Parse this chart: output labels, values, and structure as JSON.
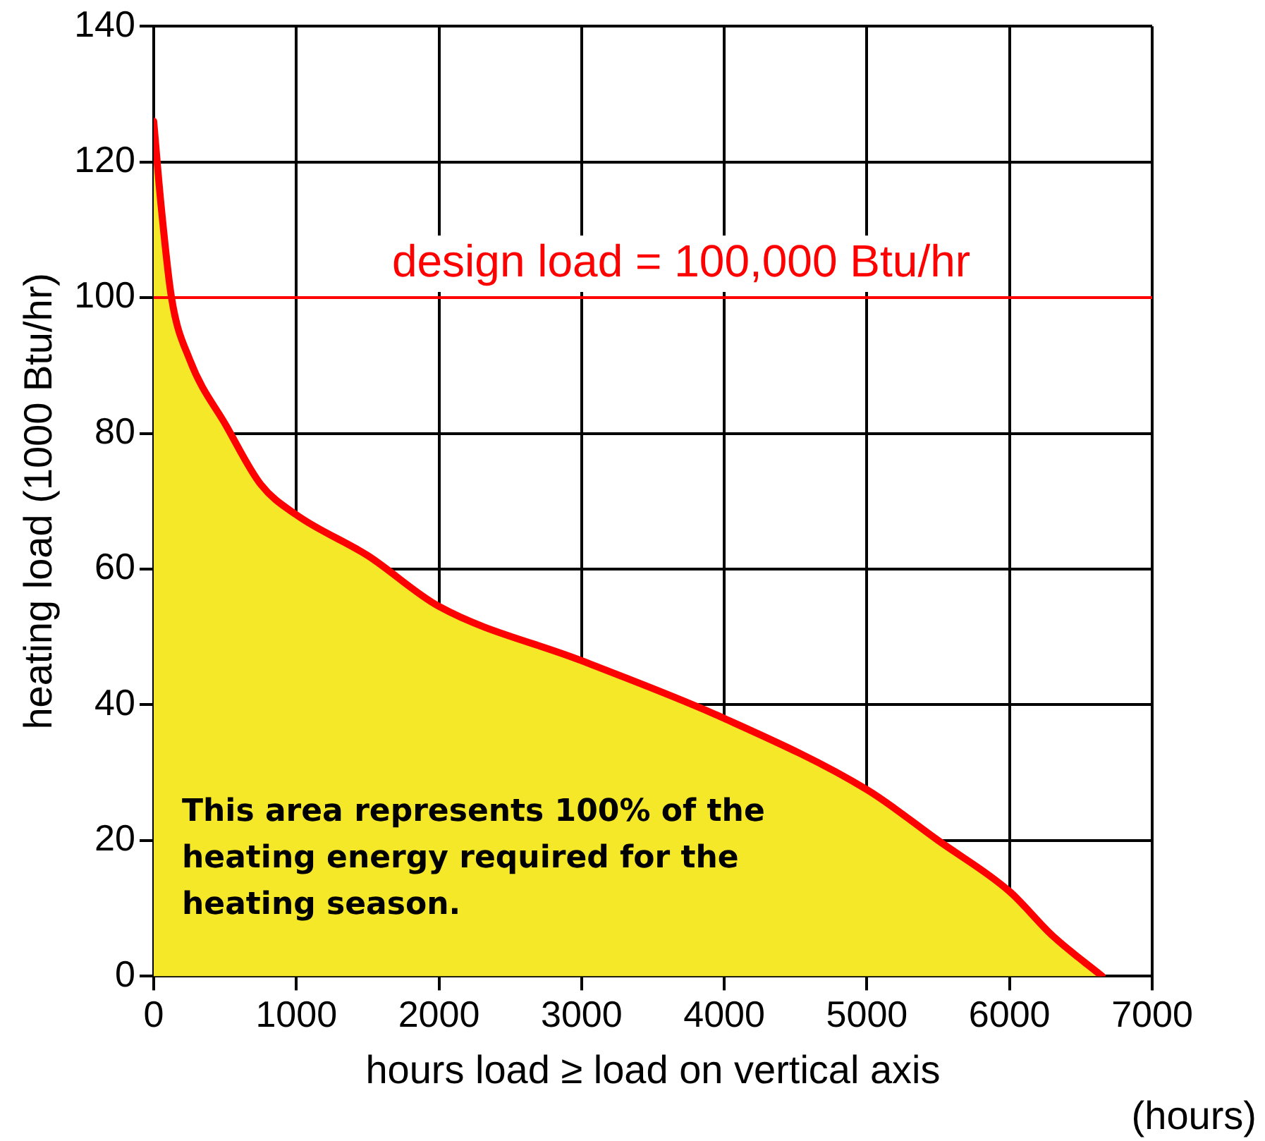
{
  "chart_data": {
    "type": "area",
    "xlabel": "hours load ≥ load on vertical axis",
    "ylabel": "heating load (1000 Btu/hr)",
    "series": [
      {
        "color": "#ff0000",
        "x": [
          0,
          50,
          125,
          250,
          512,
          750,
          1000,
          1500,
          2000,
          3000,
          4000,
          5000,
          5500,
          6000,
          6300,
          6650
        ],
        "values": [
          126,
          114,
          100,
          91,
          81,
          72.5,
          68,
          62,
          54.5,
          46.5,
          38,
          27.5,
          20,
          12.5,
          6,
          0
        ]
      }
    ],
    "xlim": [
      0,
      7000
    ],
    "xticks": [
      0,
      1000,
      2000,
      3000,
      4000,
      5000,
      6000,
      7000
    ],
    "ylim": [
      0,
      140
    ],
    "yticks": [
      0,
      20,
      40,
      60,
      80,
      100,
      120,
      140
    ],
    "grid": true,
    "legend": false,
    "marker": "none",
    "line_style": "solid",
    "ref_lines": [
      {
        "axis": "y",
        "value": 100,
        "label": "design load = 100,000 Btu/hr",
        "color": "#ff0000"
      }
    ],
    "annotations": [
      "This area represents 100% of the heating energy required for the heating season.",
      "(hours)"
    ]
  }
}
